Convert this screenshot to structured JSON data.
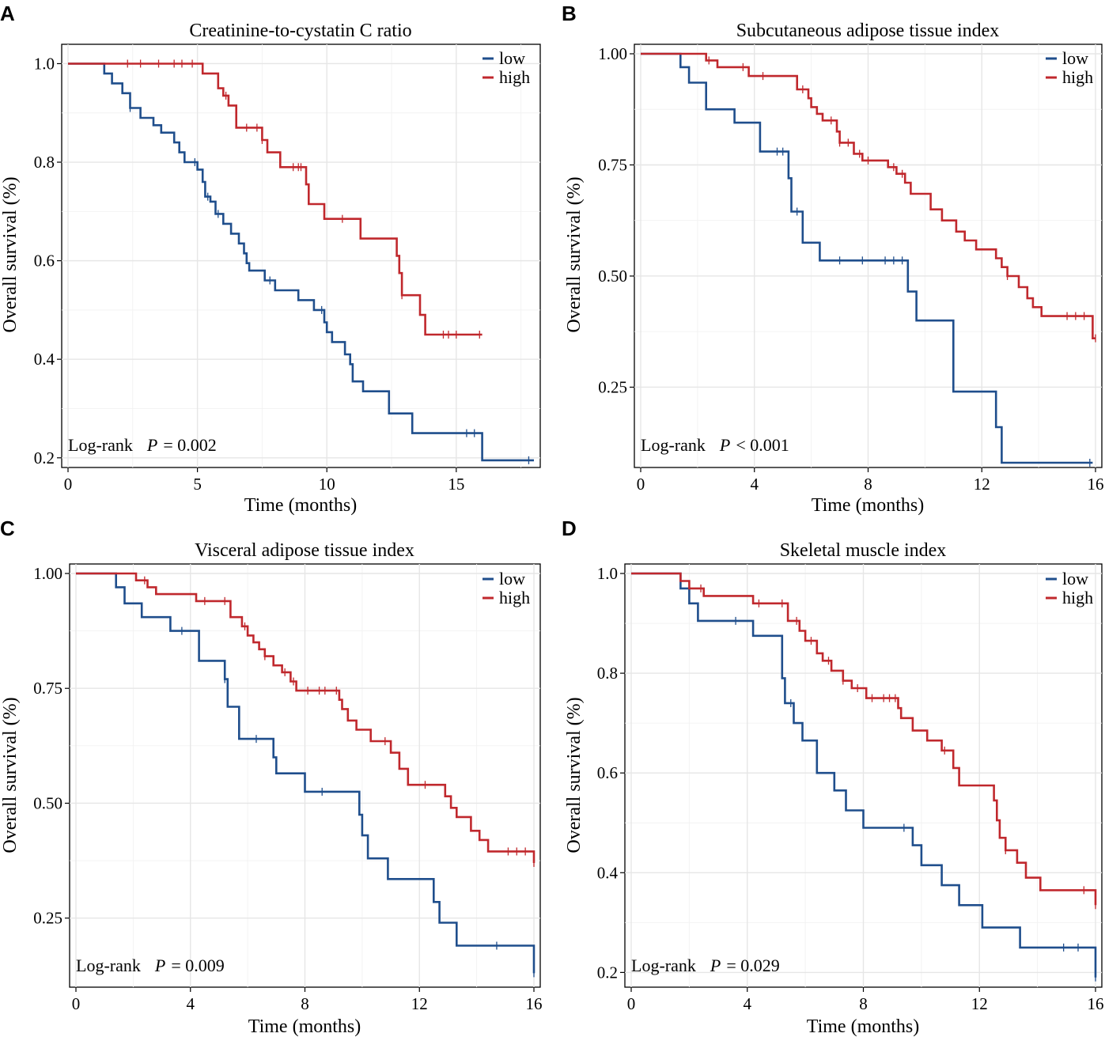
{
  "colors": {
    "low": "#1F4E8C",
    "high": "#C0282D"
  },
  "chart_data": [
    {
      "type": "line",
      "panel_label": "A",
      "title": "Creatinine-to-cystatin C ratio",
      "xlabel": "Time (months)",
      "ylabel": "Overall survival (%)",
      "xlim": [
        0,
        18
      ],
      "ylim": [
        0.19,
        1.02
      ],
      "xticks": [
        0,
        5,
        10,
        15
      ],
      "xtick_labels": [
        "0",
        "5",
        "10",
        "15"
      ],
      "yticks": [
        0.2,
        0.4,
        0.6,
        0.8,
        1.0
      ],
      "ytick_labels": [
        "0.2",
        "0.4",
        "0.6",
        "0.8",
        "1.0"
      ],
      "legend": [
        "low",
        "high"
      ],
      "stat_label": "Log-rank",
      "p_symbol": "P",
      "p_text": "= 0.002",
      "series": [
        {
          "name": "low",
          "steps": [
            [
              0,
              1.0
            ],
            [
              1.4,
              0.98
            ],
            [
              1.7,
              0.96
            ],
            [
              2.1,
              0.94
            ],
            [
              2.4,
              0.91
            ],
            [
              2.8,
              0.89
            ],
            [
              3.3,
              0.875
            ],
            [
              3.6,
              0.86
            ],
            [
              4.1,
              0.84
            ],
            [
              4.3,
              0.82
            ],
            [
              4.5,
              0.8
            ],
            [
              5.0,
              0.785
            ],
            [
              5.2,
              0.76
            ],
            [
              5.3,
              0.73
            ],
            [
              5.5,
              0.72
            ],
            [
              5.7,
              0.695
            ],
            [
              6.0,
              0.675
            ],
            [
              6.3,
              0.655
            ],
            [
              6.6,
              0.635
            ],
            [
              6.8,
              0.615
            ],
            [
              6.9,
              0.595
            ],
            [
              7.0,
              0.58
            ],
            [
              7.6,
              0.56
            ],
            [
              8.0,
              0.54
            ],
            [
              8.9,
              0.52
            ],
            [
              9.5,
              0.5
            ],
            [
              9.9,
              0.475
            ],
            [
              10.0,
              0.455
            ],
            [
              10.2,
              0.435
            ],
            [
              10.7,
              0.41
            ],
            [
              10.9,
              0.39
            ],
            [
              11.0,
              0.355
            ],
            [
              11.4,
              0.335
            ],
            [
              12.4,
              0.29
            ],
            [
              13.3,
              0.25
            ],
            [
              16.0,
              0.195
            ],
            [
              18.0,
              0.195
            ]
          ],
          "censor": [
            2.4,
            4.9,
            5.4,
            5.8,
            7.8,
            9.8,
            15.4,
            15.7,
            17.8
          ]
        },
        {
          "name": "high",
          "steps": [
            [
              0,
              1.0
            ],
            [
              5.2,
              0.98
            ],
            [
              5.8,
              0.95
            ],
            [
              6.0,
              0.935
            ],
            [
              6.2,
              0.915
            ],
            [
              6.5,
              0.87
            ],
            [
              7.5,
              0.845
            ],
            [
              7.7,
              0.82
            ],
            [
              8.2,
              0.79
            ],
            [
              9.2,
              0.755
            ],
            [
              9.3,
              0.715
            ],
            [
              9.9,
              0.685
            ],
            [
              11.3,
              0.645
            ],
            [
              12.7,
              0.61
            ],
            [
              12.8,
              0.575
            ],
            [
              12.9,
              0.53
            ],
            [
              13.6,
              0.49
            ],
            [
              13.8,
              0.45
            ],
            [
              16.0,
              0.45
            ]
          ],
          "censor": [
            2.3,
            2.8,
            3.5,
            4.1,
            4.4,
            4.8,
            6.1,
            6.9,
            7.3,
            7.5,
            8.7,
            8.9,
            9.0,
            10.6,
            12.9,
            14.5,
            14.7,
            15.0,
            15.9
          ]
        }
      ]
    },
    {
      "type": "line",
      "panel_label": "B",
      "title": "Subcutaneous adipose tissue index",
      "xlabel": "Time (months)",
      "ylabel": "Overall survival (%)",
      "xlim": [
        0,
        16
      ],
      "ylim": [
        0.08,
        1.0
      ],
      "xticks": [
        0,
        4,
        8,
        12,
        16
      ],
      "xtick_labels": [
        "0",
        "4",
        "8",
        "12",
        "16"
      ],
      "yticks": [
        0.25,
        0.5,
        0.75,
        1.0
      ],
      "ytick_labels": [
        "0.25",
        "0.50",
        "0.75",
        "1.00"
      ],
      "legend": [
        "low",
        "high"
      ],
      "stat_label": "Log-rank",
      "p_symbol": "P",
      "p_text": "< 0.001",
      "series": [
        {
          "name": "low",
          "steps": [
            [
              0,
              1.0
            ],
            [
              1.4,
              0.97
            ],
            [
              1.7,
              0.935
            ],
            [
              2.3,
              0.875
            ],
            [
              3.3,
              0.845
            ],
            [
              4.2,
              0.78
            ],
            [
              5.2,
              0.72
            ],
            [
              5.3,
              0.645
            ],
            [
              5.7,
              0.575
            ],
            [
              6.3,
              0.535
            ],
            [
              9.4,
              0.465
            ],
            [
              9.7,
              0.4
            ],
            [
              11.0,
              0.24
            ],
            [
              12.5,
              0.16
            ],
            [
              12.7,
              0.08
            ],
            [
              15.9,
              0.08
            ]
          ],
          "censor": [
            4.8,
            5.0,
            5.5,
            7.0,
            7.8,
            8.6,
            8.9,
            9.2,
            15.8
          ]
        },
        {
          "name": "high",
          "steps": [
            [
              0,
              1.0
            ],
            [
              2.3,
              0.985
            ],
            [
              2.7,
              0.97
            ],
            [
              3.8,
              0.95
            ],
            [
              5.5,
              0.92
            ],
            [
              5.9,
              0.9
            ],
            [
              6.0,
              0.88
            ],
            [
              6.2,
              0.865
            ],
            [
              6.4,
              0.85
            ],
            [
              6.9,
              0.825
            ],
            [
              7.0,
              0.8
            ],
            [
              7.5,
              0.775
            ],
            [
              7.8,
              0.76
            ],
            [
              8.7,
              0.745
            ],
            [
              9.0,
              0.73
            ],
            [
              9.3,
              0.71
            ],
            [
              9.5,
              0.685
            ],
            [
              10.2,
              0.65
            ],
            [
              10.6,
              0.625
            ],
            [
              11.1,
              0.6
            ],
            [
              11.4,
              0.58
            ],
            [
              11.8,
              0.56
            ],
            [
              12.5,
              0.54
            ],
            [
              12.7,
              0.52
            ],
            [
              12.9,
              0.5
            ],
            [
              13.3,
              0.475
            ],
            [
              13.6,
              0.45
            ],
            [
              13.8,
              0.43
            ],
            [
              14.1,
              0.41
            ],
            [
              15.9,
              0.36
            ],
            [
              16.0,
              0.36
            ]
          ],
          "censor": [
            2.4,
            3.6,
            4.3,
            5.7,
            6.7,
            7.0,
            7.3,
            7.7,
            8.0,
            8.9,
            9.2,
            12.9,
            15.0,
            15.3,
            15.6,
            16.0
          ]
        }
      ]
    },
    {
      "type": "line",
      "panel_label": "C",
      "title": "Visceral adipose tissue index",
      "xlabel": "Time (months)",
      "ylabel": "Overall survival (%)",
      "xlim": [
        0,
        16
      ],
      "ylim": [
        0.11,
        1.0
      ],
      "xticks": [
        0,
        4,
        8,
        12,
        16
      ],
      "xtick_labels": [
        "0",
        "4",
        "8",
        "12",
        "16"
      ],
      "yticks": [
        0.25,
        0.5,
        0.75,
        1.0
      ],
      "ytick_labels": [
        "0.25",
        "0.50",
        "0.75",
        "1.00"
      ],
      "legend": [
        "low",
        "high"
      ],
      "stat_label": "Log-rank",
      "p_symbol": "P",
      "p_text": "= 0.009",
      "series": [
        {
          "name": "low",
          "steps": [
            [
              0,
              1.0
            ],
            [
              1.4,
              0.97
            ],
            [
              1.7,
              0.935
            ],
            [
              2.3,
              0.905
            ],
            [
              3.3,
              0.875
            ],
            [
              4.3,
              0.81
            ],
            [
              5.2,
              0.77
            ],
            [
              5.3,
              0.71
            ],
            [
              5.7,
              0.64
            ],
            [
              6.9,
              0.6
            ],
            [
              7.0,
              0.565
            ],
            [
              8.0,
              0.525
            ],
            [
              9.9,
              0.475
            ],
            [
              10.0,
              0.43
            ],
            [
              10.2,
              0.38
            ],
            [
              10.9,
              0.335
            ],
            [
              12.5,
              0.285
            ],
            [
              12.7,
              0.24
            ],
            [
              13.3,
              0.19
            ],
            [
              16.0,
              0.13
            ]
          ],
          "censor": [
            3.7,
            5.2,
            6.3,
            8.6,
            14.7,
            16.0
          ]
        },
        {
          "name": "high",
          "steps": [
            [
              0,
              1.0
            ],
            [
              2.1,
              0.985
            ],
            [
              2.5,
              0.97
            ],
            [
              2.8,
              0.955
            ],
            [
              4.2,
              0.94
            ],
            [
              5.4,
              0.905
            ],
            [
              5.8,
              0.885
            ],
            [
              6.0,
              0.865
            ],
            [
              6.2,
              0.85
            ],
            [
              6.4,
              0.835
            ],
            [
              6.6,
              0.82
            ],
            [
              6.9,
              0.8
            ],
            [
              7.2,
              0.785
            ],
            [
              7.5,
              0.765
            ],
            [
              7.7,
              0.745
            ],
            [
              9.2,
              0.725
            ],
            [
              9.3,
              0.705
            ],
            [
              9.5,
              0.68
            ],
            [
              9.8,
              0.66
            ],
            [
              10.3,
              0.635
            ],
            [
              11.0,
              0.61
            ],
            [
              11.3,
              0.575
            ],
            [
              11.6,
              0.54
            ],
            [
              12.9,
              0.515
            ],
            [
              13.1,
              0.49
            ],
            [
              13.3,
              0.47
            ],
            [
              13.8,
              0.44
            ],
            [
              14.1,
              0.42
            ],
            [
              14.4,
              0.395
            ],
            [
              16.0,
              0.37
            ]
          ],
          "censor": [
            2.4,
            4.5,
            5.2,
            5.9,
            6.6,
            7.3,
            7.6,
            8.1,
            8.5,
            8.7,
            9.1,
            10.8,
            12.2,
            15.1,
            15.4,
            15.7,
            16.0
          ]
        }
      ]
    },
    {
      "type": "line",
      "panel_label": "D",
      "title": "Skeletal muscle index",
      "xlabel": "Time (months)",
      "ylabel": "Overall survival (%)",
      "xlim": [
        0,
        16
      ],
      "ylim": [
        0.18,
        1.0
      ],
      "xticks": [
        0,
        4,
        8,
        12,
        16
      ],
      "xtick_labels": [
        "0",
        "4",
        "8",
        "12",
        "16"
      ],
      "yticks": [
        0.2,
        0.4,
        0.6,
        0.8,
        1.0
      ],
      "ytick_labels": [
        "0.2",
        "0.4",
        "0.6",
        "0.8",
        "1.0"
      ],
      "legend": [
        "low",
        "high"
      ],
      "stat_label": "Log-rank",
      "p_symbol": "P",
      "p_text": "= 0.029",
      "series": [
        {
          "name": "low",
          "steps": [
            [
              0,
              1.0
            ],
            [
              1.7,
              0.97
            ],
            [
              2.0,
              0.94
            ],
            [
              2.3,
              0.905
            ],
            [
              4.2,
              0.875
            ],
            [
              5.2,
              0.79
            ],
            [
              5.3,
              0.74
            ],
            [
              5.6,
              0.7
            ],
            [
              5.9,
              0.665
            ],
            [
              6.4,
              0.6
            ],
            [
              7.0,
              0.565
            ],
            [
              7.4,
              0.525
            ],
            [
              8.0,
              0.49
            ],
            [
              9.7,
              0.455
            ],
            [
              10.0,
              0.415
            ],
            [
              10.7,
              0.375
            ],
            [
              11.3,
              0.335
            ],
            [
              12.1,
              0.29
            ],
            [
              13.4,
              0.25
            ],
            [
              16.0,
              0.19
            ]
          ],
          "censor": [
            3.6,
            5.5,
            9.4,
            14.9,
            15.4,
            16.0
          ]
        },
        {
          "name": "high",
          "steps": [
            [
              0,
              1.0
            ],
            [
              1.7,
              0.985
            ],
            [
              2.0,
              0.97
            ],
            [
              2.5,
              0.955
            ],
            [
              4.2,
              0.94
            ],
            [
              5.4,
              0.905
            ],
            [
              5.8,
              0.885
            ],
            [
              6.0,
              0.865
            ],
            [
              6.4,
              0.84
            ],
            [
              6.6,
              0.825
            ],
            [
              6.9,
              0.805
            ],
            [
              7.3,
              0.785
            ],
            [
              7.6,
              0.77
            ],
            [
              8.1,
              0.75
            ],
            [
              9.2,
              0.73
            ],
            [
              9.3,
              0.71
            ],
            [
              9.7,
              0.685
            ],
            [
              10.2,
              0.665
            ],
            [
              10.7,
              0.645
            ],
            [
              11.1,
              0.61
            ],
            [
              11.3,
              0.575
            ],
            [
              12.5,
              0.545
            ],
            [
              12.6,
              0.505
            ],
            [
              12.7,
              0.47
            ],
            [
              12.9,
              0.445
            ],
            [
              13.3,
              0.42
            ],
            [
              13.6,
              0.39
            ],
            [
              14.1,
              0.365
            ],
            [
              16.0,
              0.335
            ]
          ],
          "censor": [
            2.4,
            4.4,
            5.2,
            5.7,
            6.2,
            6.8,
            7.3,
            7.8,
            8.3,
            8.7,
            8.9,
            9.1,
            10.8,
            12.9,
            15.6,
            16.0
          ]
        }
      ]
    }
  ]
}
